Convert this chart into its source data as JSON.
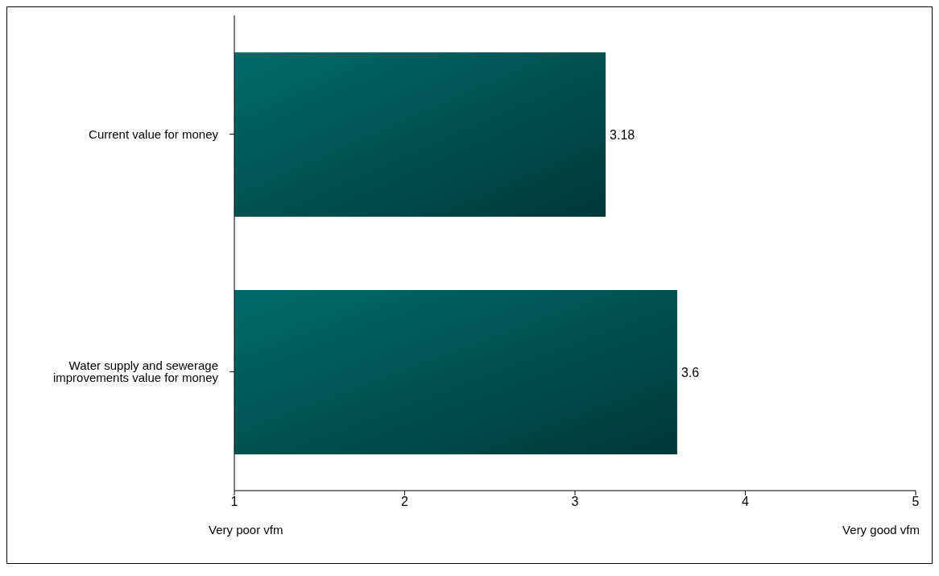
{
  "chart_data": {
    "type": "bar",
    "orientation": "horizontal",
    "categories": [
      "Current value for money",
      "Water supply and sewerage improvements value for money"
    ],
    "values": [
      3.18,
      3.6
    ],
    "color": "#006b6b",
    "xlim": [
      1,
      5
    ],
    "xticks": [
      1,
      2,
      3,
      4,
      5
    ],
    "grid": false,
    "data_labels": true,
    "annotations": [
      "Very poor vfm",
      "Very good vfm"
    ]
  }
}
